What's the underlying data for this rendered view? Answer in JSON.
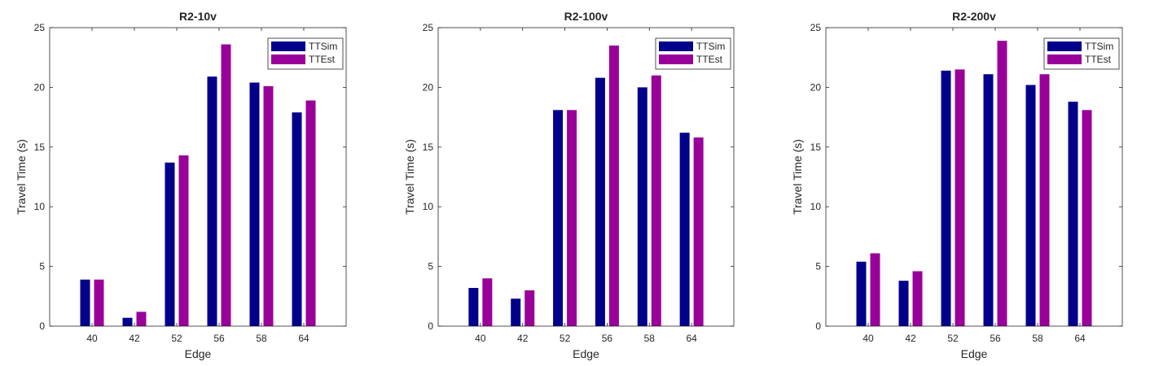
{
  "colors": {
    "ttsim": "#00008b",
    "ttest": "#990099",
    "axis": "#262626"
  },
  "chart_data": [
    {
      "type": "bar",
      "title": "R2-10v",
      "xlabel": "Edge",
      "ylabel": "Travel Time (s)",
      "ylim": [
        0,
        25
      ],
      "yticks": [
        0,
        5,
        10,
        15,
        20,
        25
      ],
      "categories": [
        "40",
        "42",
        "52",
        "56",
        "58",
        "64"
      ],
      "legend_position": "top-right",
      "grid": false,
      "series": [
        {
          "name": "TTSim",
          "values": [
            3.9,
            0.7,
            13.7,
            20.9,
            20.4,
            17.9
          ]
        },
        {
          "name": "TTEst",
          "values": [
            3.9,
            1.2,
            14.3,
            23.6,
            20.1,
            18.9
          ]
        }
      ]
    },
    {
      "type": "bar",
      "title": "R2-100v",
      "xlabel": "Edge",
      "ylabel": "Travel Time (s)",
      "ylim": [
        0,
        25
      ],
      "yticks": [
        0,
        5,
        10,
        15,
        20,
        25
      ],
      "categories": [
        "40",
        "42",
        "52",
        "56",
        "58",
        "64"
      ],
      "legend_position": "top-right",
      "grid": false,
      "series": [
        {
          "name": "TTSim",
          "values": [
            3.2,
            2.3,
            18.1,
            20.8,
            20.0,
            16.2
          ]
        },
        {
          "name": "TTEst",
          "values": [
            4.0,
            3.0,
            18.1,
            23.5,
            21.0,
            15.8
          ]
        }
      ]
    },
    {
      "type": "bar",
      "title": "R2-200v",
      "xlabel": "Edge",
      "ylabel": "Travel Time (s)",
      "ylim": [
        0,
        25
      ],
      "yticks": [
        0,
        5,
        10,
        15,
        20,
        25
      ],
      "categories": [
        "40",
        "42",
        "52",
        "56",
        "58",
        "64"
      ],
      "legend_position": "top-right",
      "grid": false,
      "series": [
        {
          "name": "TTSim",
          "values": [
            5.4,
            3.8,
            21.4,
            21.1,
            20.2,
            18.8
          ]
        },
        {
          "name": "TTEst",
          "values": [
            6.1,
            4.6,
            21.5,
            23.9,
            21.1,
            18.1
          ]
        }
      ]
    }
  ]
}
